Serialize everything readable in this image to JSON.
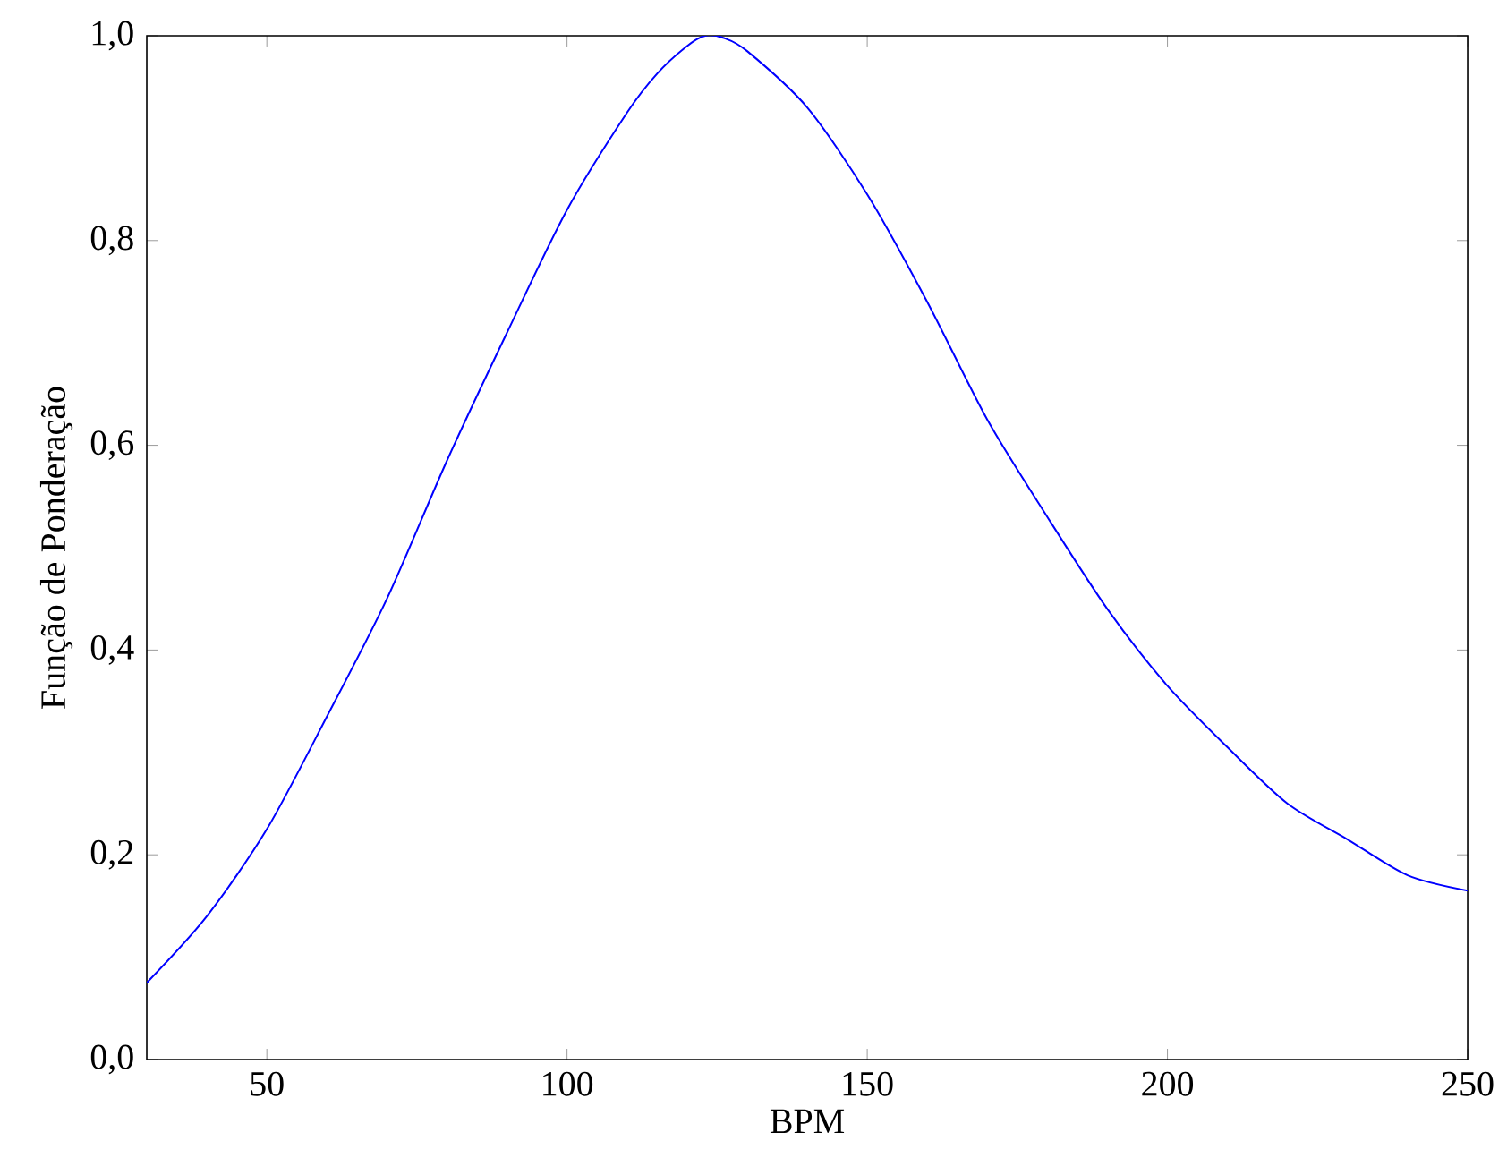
{
  "chart_data": {
    "type": "line",
    "xlabel": "BPM",
    "ylabel": "Função de Ponderação",
    "color": "#0000ff",
    "x": [
      30,
      40,
      50,
      60,
      70,
      80,
      90,
      100,
      110,
      115,
      120,
      123,
      126,
      130,
      140,
      150,
      160,
      170,
      180,
      190,
      200,
      210,
      220,
      230,
      240,
      250
    ],
    "values": [
      0.075,
      0.14,
      0.225,
      0.335,
      0.45,
      0.585,
      0.71,
      0.83,
      0.925,
      0.963,
      0.99,
      1.0,
      0.998,
      0.985,
      0.93,
      0.845,
      0.74,
      0.625,
      0.53,
      0.44,
      0.365,
      0.305,
      0.25,
      0.215,
      0.18,
      0.165
    ],
    "xlim": [
      30,
      250
    ],
    "ylim": [
      0,
      1
    ],
    "xticks": [
      50,
      100,
      150,
      200,
      250
    ],
    "yticks": [
      {
        "value": 0,
        "label": "0,0"
      },
      {
        "value": 0.2,
        "label": "0,2"
      },
      {
        "value": 0.4,
        "label": "0,4"
      },
      {
        "value": 0.6,
        "label": "0,6"
      },
      {
        "value": 0.8,
        "label": "0,8"
      },
      {
        "value": 1,
        "label": "1,0"
      }
    ],
    "marker": "none",
    "line_style": "solid"
  }
}
